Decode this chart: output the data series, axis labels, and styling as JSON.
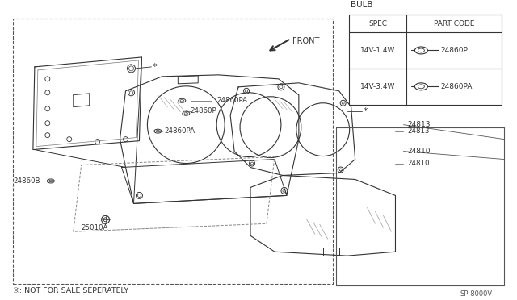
{
  "bg_color": "#ffffff",
  "line_color": "#333333",
  "footnote": "※: NOT FOR SALE SEPERATELY",
  "part_code": "SP-8000V",
  "bulb_rows": [
    {
      "spec": "14V-1.4W",
      "code": "24860P"
    },
    {
      "spec": "14V-3.4W",
      "code": "24860PA"
    }
  ]
}
